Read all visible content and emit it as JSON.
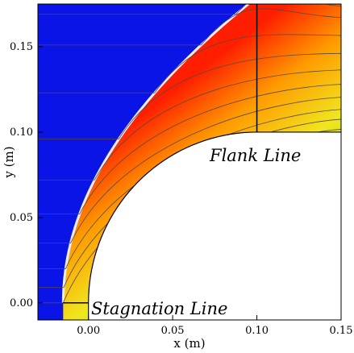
{
  "chart_data": {
    "type": "heatmap",
    "title": "",
    "xlabel": "x (m)",
    "ylabel": "y (m)",
    "xlim": [
      -0.03,
      0.15
    ],
    "ylim": [
      -0.01,
      0.175
    ],
    "x_ticks": [
      {
        "value": 0.0,
        "label": "0.00"
      },
      {
        "value": 0.05,
        "label": "0.05"
      },
      {
        "value": 0.1,
        "label": "0.10"
      },
      {
        "value": 0.15,
        "label": "0.15"
      }
    ],
    "y_ticks": [
      {
        "value": 0.0,
        "label": "0.00"
      },
      {
        "value": 0.05,
        "label": "0.05"
      },
      {
        "value": 0.1,
        "label": "0.10"
      },
      {
        "value": 0.15,
        "label": "0.15"
      }
    ],
    "grid": false,
    "colors": {
      "freestream": "#0a14e6",
      "shock_edge": "#e8ecff",
      "post_shock_core": "#ff1e00",
      "wall_layer": "#c86414",
      "downstream": "#50e650"
    },
    "body": {
      "shape": "quarter-circle-plus-flank",
      "nose_radius": 0.1,
      "center": [
        0.1,
        0.0
      ],
      "flank_end_x": 0.15
    },
    "shock": {
      "standoff_x": -0.015,
      "apex_x": 0.095,
      "apex_y": 0.175
    },
    "lines": [
      {
        "name": "Stagnation Line",
        "x": [
          -0.015,
          0.0
        ],
        "y": [
          0.0,
          0.0
        ]
      },
      {
        "name": "Flank Line",
        "x": [
          0.1,
          0.1
        ],
        "y": [
          0.1,
          0.175
        ]
      }
    ],
    "streamline_start_y": [
      0.0,
      0.009,
      0.02,
      0.035,
      0.052,
      0.072,
      0.096,
      0.123,
      0.151,
      0.169
    ]
  }
}
